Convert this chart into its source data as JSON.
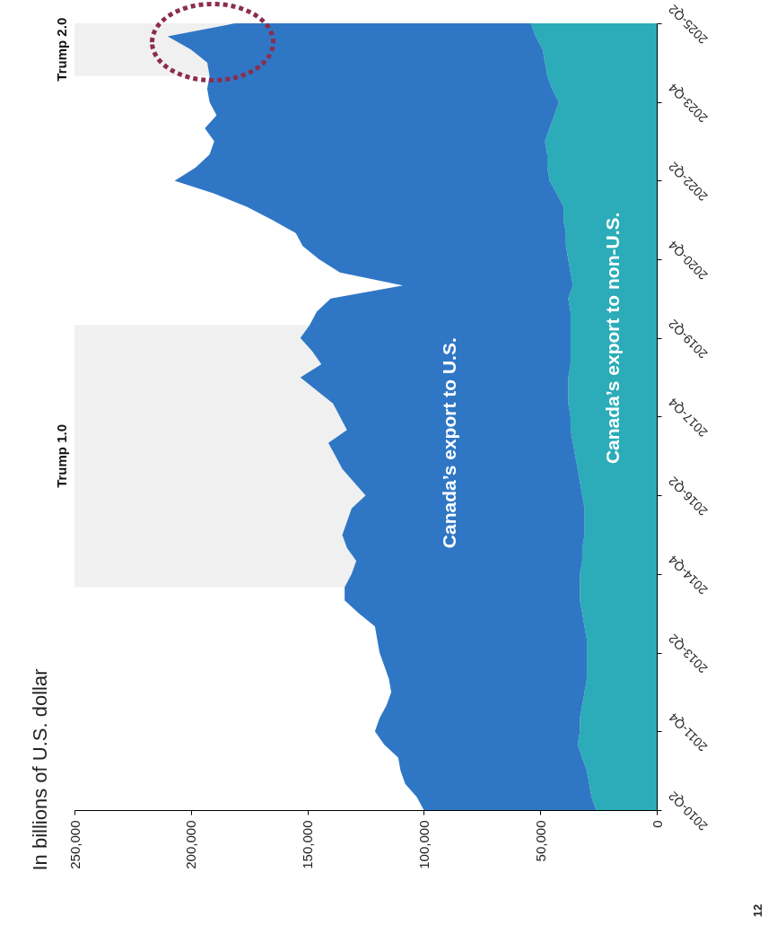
{
  "chart_data": {
    "type": "area",
    "orientation": "horizontal",
    "title": "In billions of U.S. dollar",
    "stacked": true,
    "legend": false,
    "grid": false,
    "x": [
      "2010-04",
      "2010-07",
      "2010-10",
      "2011-01",
      "2011-04",
      "2011-07",
      "2011-10",
      "2012-01",
      "2012-04",
      "2012-07",
      "2012-10",
      "2013-01",
      "2013-04",
      "2013-07",
      "2013-10",
      "2014-01",
      "2014-04",
      "2014-07",
      "2014-10",
      "2015-01",
      "2015-04",
      "2015-07",
      "2015-10",
      "2016-01",
      "2016-04",
      "2016-07",
      "2016-10",
      "2017-01",
      "2017-04",
      "2017-07",
      "2017-10",
      "2018-01",
      "2018-04",
      "2018-07",
      "2018-10",
      "2019-01",
      "2019-04",
      "2019-07",
      "2019-10",
      "2020-01",
      "2020-04",
      "2020-07",
      "2020-10",
      "2021-01",
      "2021-04",
      "2021-07",
      "2021-10",
      "2022-01",
      "2022-04",
      "2022-07",
      "2022-10",
      "2023-01",
      "2023-04",
      "2023-07",
      "2023-10",
      "2024-01",
      "2024-04",
      "2024-07",
      "2024-10",
      "2025-01",
      "2025-04"
    ],
    "series": [
      {
        "name": "Canada’s export to non-U.S.",
        "color": "#2bacb8",
        "values": [
          26000,
          28000,
          29000,
          30000,
          32000,
          34000,
          33000,
          33000,
          32000,
          31000,
          30000,
          30000,
          30000,
          30000,
          31000,
          32000,
          33000,
          33000,
          33000,
          32000,
          32000,
          31000,
          31000,
          31000,
          32000,
          33000,
          34000,
          35000,
          36000,
          37000,
          37000,
          38000,
          38000,
          38000,
          37000,
          37000,
          37000,
          37000,
          37000,
          38000,
          36000,
          37000,
          38000,
          39000,
          39000,
          40000,
          40000,
          43000,
          46000,
          47000,
          47000,
          48000,
          46000,
          44000,
          42000,
          45000,
          47000,
          48000,
          49000,
          52000,
          54000
        ]
      },
      {
        "name": "Canada’s export to U.S.",
        "color": "#2f77c5",
        "values": [
          74000,
          75000,
          79000,
          80000,
          79000,
          83000,
          88000,
          86000,
          84000,
          83000,
          85000,
          87000,
          89000,
          90000,
          90000,
          96000,
          101000,
          101000,
          98000,
          97000,
          101000,
          104000,
          102000,
          100000,
          93000,
          97000,
          101000,
          103000,
          105000,
          96000,
          99000,
          101000,
          108000,
          115000,
          107000,
          111000,
          116000,
          112000,
          109000,
          102000,
          73000,
          99000,
          107000,
          113000,
          116000,
          125000,
          136000,
          147000,
          161000,
          151000,
          145000,
          142000,
          148000,
          145000,
          150000,
          148000,
          145000,
          145000,
          151000,
          158000,
          127000
        ]
      }
    ],
    "ylim": [
      "2010-04",
      "2025-04"
    ],
    "yticks": [
      {
        "value": "2010-04",
        "label": "2010-Q2"
      },
      {
        "value": "2011-10",
        "label": "2011-Q4"
      },
      {
        "value": "2013-04",
        "label": "2013-Q2"
      },
      {
        "value": "2014-10",
        "label": "2014-Q4"
      },
      {
        "value": "2016-04",
        "label": "2016-Q2"
      },
      {
        "value": "2017-10",
        "label": "2017-Q4"
      },
      {
        "value": "2019-04",
        "label": "2019-Q2"
      },
      {
        "value": "2020-10",
        "label": "2020-Q4"
      },
      {
        "value": "2022-04",
        "label": "2022-Q2"
      },
      {
        "value": "2023-10",
        "label": "2023-Q4"
      },
      {
        "value": "2025-04",
        "label": "2025-Q2"
      }
    ],
    "xlim": [
      250000,
      0
    ],
    "xticks": [
      {
        "value": 250000,
        "label": "250,000"
      },
      {
        "value": 200000,
        "label": "200,000"
      },
      {
        "value": 150000,
        "label": "150,000"
      },
      {
        "value": 100000,
        "label": "100,000"
      },
      {
        "value": 50000,
        "label": "50,000"
      },
      {
        "value": 0,
        "label": "0"
      }
    ],
    "bands": [
      {
        "axis": "y",
        "from": "2014-07",
        "to": "2019-07",
        "label": "Trump 1.0",
        "color": "#f0f0f0"
      },
      {
        "axis": "y",
        "from": "2024-04",
        "to": "2025-04",
        "label": "Trump 2.0",
        "color": "#f0f0f0"
      }
    ],
    "annotations": [
      "12"
    ]
  }
}
